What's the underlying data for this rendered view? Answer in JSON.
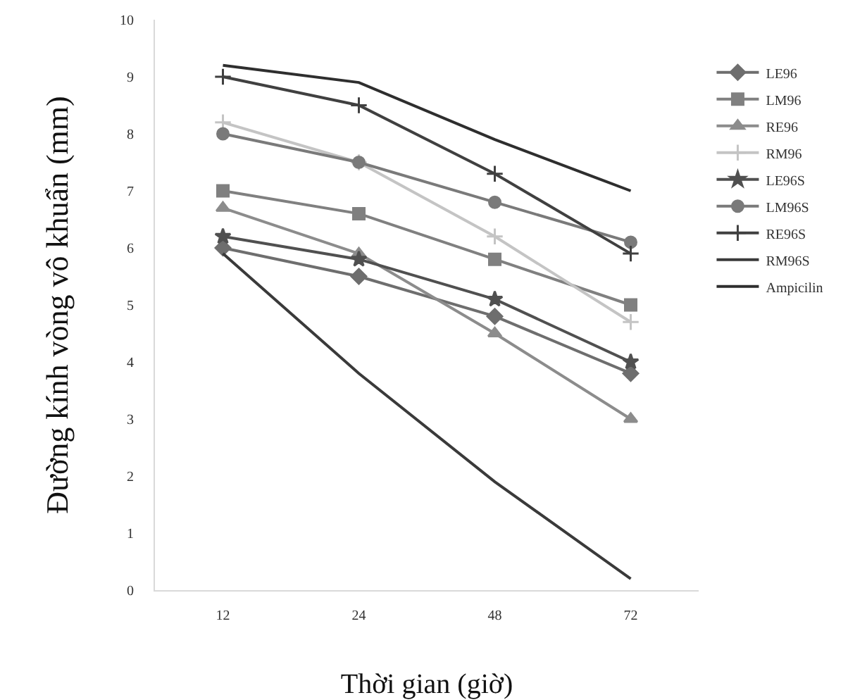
{
  "chart_data": {
    "type": "line",
    "xlabel": "Thời gian (giờ)",
    "ylabel": "Đường kính vòng vô khuẩn (mm)",
    "categories": [
      "12",
      "24",
      "48",
      "72"
    ],
    "ylim": [
      0,
      10
    ],
    "yticks": [
      0,
      1,
      2,
      3,
      4,
      5,
      6,
      7,
      8,
      9,
      10
    ],
    "grid": false,
    "legend": "right",
    "series": [
      {
        "name": "LE96",
        "color": "#6e6e6e",
        "marker": "diamond",
        "values": [
          6.0,
          5.5,
          4.8,
          3.8
        ]
      },
      {
        "name": "LM96",
        "color": "#808080",
        "marker": "square",
        "values": [
          7.0,
          6.6,
          5.8,
          5.0
        ]
      },
      {
        "name": "RE96",
        "color": "#8c8c8c",
        "marker": "triangle",
        "values": [
          6.7,
          5.9,
          4.5,
          3.0
        ]
      },
      {
        "name": "RM96",
        "color": "#c4c4c4",
        "marker": "cross",
        "values": [
          8.2,
          7.5,
          6.2,
          4.7
        ]
      },
      {
        "name": "LE96S",
        "color": "#505050",
        "marker": "star",
        "values": [
          6.2,
          5.8,
          5.1,
          4.0
        ]
      },
      {
        "name": "LM96S",
        "color": "#7a7a7a",
        "marker": "circle",
        "values": [
          8.0,
          7.5,
          6.8,
          6.1
        ]
      },
      {
        "name": "RE96S",
        "color": "#404040",
        "marker": "cross",
        "values": [
          9.0,
          8.5,
          7.3,
          5.9
        ]
      },
      {
        "name": "RM96S",
        "color": "#3a3a3a",
        "marker": "none",
        "values": [
          5.9,
          3.8,
          1.9,
          0.2
        ]
      },
      {
        "name": "Ampicilin",
        "color": "#2e2e2e",
        "marker": "none",
        "values": [
          9.2,
          8.9,
          7.9,
          7.0
        ]
      }
    ]
  }
}
